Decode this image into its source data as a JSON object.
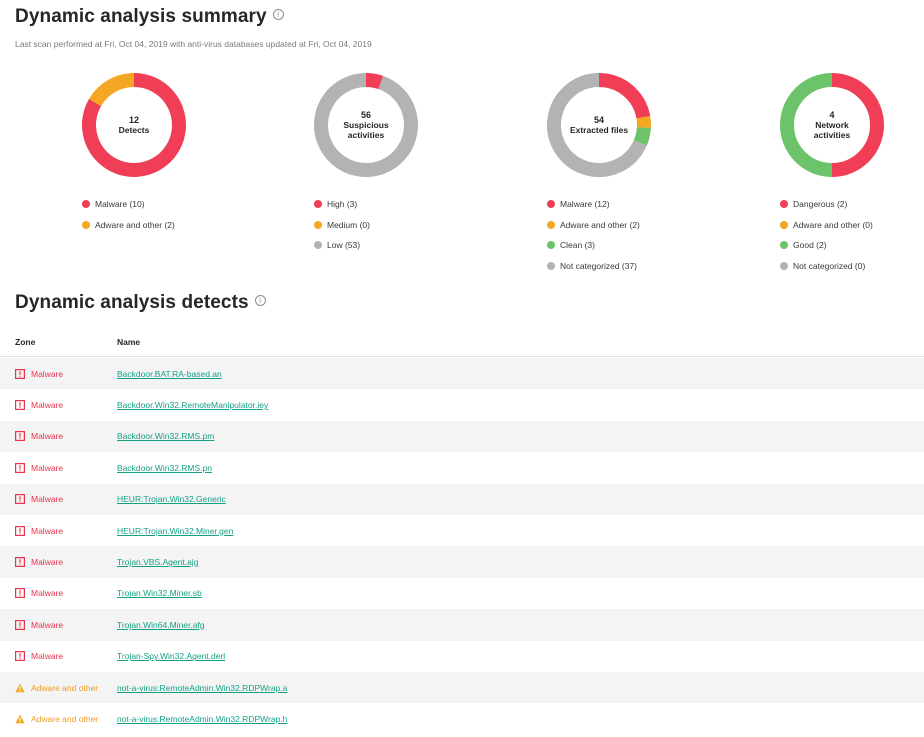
{
  "header": {
    "title": "Dynamic analysis summary",
    "subtitle": "Last scan performed at Fri, Oct 04, 2019 with anti-virus databases updated at Fri, Oct 04, 2019"
  },
  "colors": {
    "red": "#ef3e56",
    "orange": "#f5a623",
    "green": "#6cc36a",
    "gray": "#b3b3b3",
    "link": "#15a086"
  },
  "chart_data": [
    {
      "type": "pie",
      "center_value": "12",
      "center_label": "Detects",
      "categories": [
        "Malware (10)",
        "Adware and other (2)"
      ],
      "values": [
        10,
        2
      ],
      "colors": [
        "#ef3e56",
        "#f5a623"
      ]
    },
    {
      "type": "pie",
      "center_value": "56",
      "center_label": "Suspicious activities",
      "categories": [
        "High (3)",
        "Medium (0)",
        "Low (53)"
      ],
      "values": [
        3,
        0,
        53
      ],
      "colors": [
        "#ef3e56",
        "#f5a623",
        "#b3b3b3"
      ]
    },
    {
      "type": "pie",
      "center_value": "54",
      "center_label": "Extracted files",
      "categories": [
        "Malware (12)",
        "Adware and other (2)",
        "Clean (3)",
        "Not categorized (37)"
      ],
      "values": [
        12,
        2,
        3,
        37
      ],
      "colors": [
        "#ef3e56",
        "#f5a623",
        "#6cc36a",
        "#b3b3b3"
      ]
    },
    {
      "type": "pie",
      "center_value": "4",
      "center_label": "Network activities",
      "categories": [
        "Dangerous (2)",
        "Adware and other (0)",
        "Good (2)",
        "Not categorized (0)"
      ],
      "values": [
        2,
        0,
        2,
        0
      ],
      "colors": [
        "#ef3e56",
        "#f5a623",
        "#6cc36a",
        "#b3b3b3"
      ]
    }
  ],
  "detects": {
    "title": "Dynamic analysis detects",
    "columns": {
      "zone": "Zone",
      "name": "Name"
    },
    "rows": [
      {
        "zone": "Malware",
        "zone_type": "malware",
        "name": "Backdoor.BAT.RA-based.an"
      },
      {
        "zone": "Malware",
        "zone_type": "malware",
        "name": "Backdoor.Win32.RemoteManipulator.iey"
      },
      {
        "zone": "Malware",
        "zone_type": "malware",
        "name": "Backdoor.Win32.RMS.pm"
      },
      {
        "zone": "Malware",
        "zone_type": "malware",
        "name": "Backdoor.Win32.RMS.pn"
      },
      {
        "zone": "Malware",
        "zone_type": "malware",
        "name": "HEUR:Trojan.Win32.Generic"
      },
      {
        "zone": "Malware",
        "zone_type": "malware",
        "name": "HEUR:Trojan.Win32.Miner.gen"
      },
      {
        "zone": "Malware",
        "zone_type": "malware",
        "name": "Trojan.VBS.Agent.ajg"
      },
      {
        "zone": "Malware",
        "zone_type": "malware",
        "name": "Trojan.Win32.Miner.sb"
      },
      {
        "zone": "Malware",
        "zone_type": "malware",
        "name": "Trojan.Win64.Miner.afg"
      },
      {
        "zone": "Malware",
        "zone_type": "malware",
        "name": "Trojan-Spy.Win32.Agent.derl"
      },
      {
        "zone": "Adware and other",
        "zone_type": "adware",
        "name": "not-a-virus:RemoteAdmin.Win32.RDPWrap.a"
      },
      {
        "zone": "Adware and other",
        "zone_type": "adware",
        "name": "not-a-virus:RemoteAdmin.Win32.RDPWrap.h"
      }
    ]
  }
}
